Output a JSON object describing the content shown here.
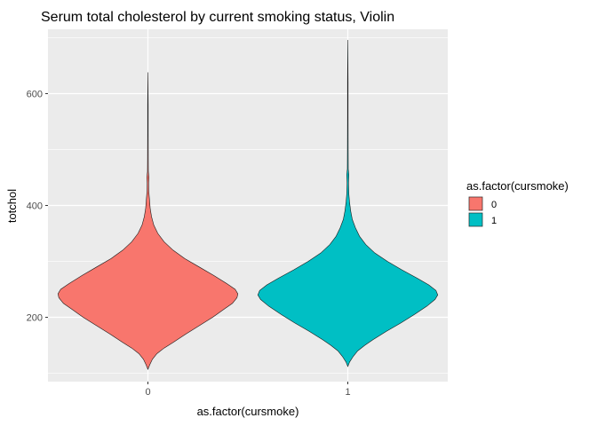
{
  "chart_data": {
    "type": "violin",
    "title": "Serum total cholesterol by current smoking status, Violin",
    "xlabel": "as.factor(cursmoke)",
    "ylabel": "totchol",
    "categories": [
      "0",
      "1"
    ],
    "ylim": [
      85,
      715
    ],
    "yticks": [
      200,
      400,
      600
    ],
    "grid": true,
    "legend": {
      "title": "as.factor(cursmoke)",
      "placement": "right",
      "entries": [
        {
          "label": "0",
          "color": "#F8766D"
        },
        {
          "label": "1",
          "color": "#00BFC4"
        }
      ]
    },
    "series": [
      {
        "category": "0",
        "color": "#F8766D",
        "min": 107,
        "max": 638,
        "density": [
          [
            107,
            0.0
          ],
          [
            115,
            0.02
          ],
          [
            125,
            0.05
          ],
          [
            135,
            0.1
          ],
          [
            145,
            0.18
          ],
          [
            155,
            0.28
          ],
          [
            170,
            0.42
          ],
          [
            185,
            0.57
          ],
          [
            200,
            0.72
          ],
          [
            215,
            0.85
          ],
          [
            225,
            0.94
          ],
          [
            235,
            0.99
          ],
          [
            242,
            1.0
          ],
          [
            250,
            0.97
          ],
          [
            260,
            0.88
          ],
          [
            275,
            0.73
          ],
          [
            290,
            0.57
          ],
          [
            305,
            0.41
          ],
          [
            320,
            0.28
          ],
          [
            335,
            0.18
          ],
          [
            350,
            0.11
          ],
          [
            365,
            0.065
          ],
          [
            380,
            0.04
          ],
          [
            395,
            0.025
          ],
          [
            410,
            0.018
          ],
          [
            425,
            0.01
          ],
          [
            440,
            0.008
          ],
          [
            450,
            0.012
          ],
          [
            460,
            0.005
          ],
          [
            480,
            0.004
          ],
          [
            530,
            0.003
          ],
          [
            580,
            0.003
          ],
          [
            638,
            0.0
          ]
        ]
      },
      {
        "category": "1",
        "color": "#00BFC4",
        "min": 112,
        "max": 696,
        "density": [
          [
            112,
            0.0
          ],
          [
            120,
            0.02
          ],
          [
            130,
            0.06
          ],
          [
            140,
            0.11
          ],
          [
            150,
            0.19
          ],
          [
            160,
            0.28
          ],
          [
            175,
            0.43
          ],
          [
            190,
            0.59
          ],
          [
            205,
            0.74
          ],
          [
            220,
            0.88
          ],
          [
            232,
            0.97
          ],
          [
            240,
            1.0
          ],
          [
            248,
            0.98
          ],
          [
            258,
            0.9
          ],
          [
            270,
            0.77
          ],
          [
            285,
            0.6
          ],
          [
            300,
            0.44
          ],
          [
            315,
            0.3
          ],
          [
            330,
            0.2
          ],
          [
            345,
            0.13
          ],
          [
            360,
            0.085
          ],
          [
            375,
            0.05
          ],
          [
            390,
            0.032
          ],
          [
            405,
            0.02
          ],
          [
            420,
            0.012
          ],
          [
            440,
            0.008
          ],
          [
            455,
            0.012
          ],
          [
            465,
            0.005
          ],
          [
            500,
            0.004
          ],
          [
            560,
            0.003
          ],
          [
            620,
            0.003
          ],
          [
            696,
            0.0
          ]
        ]
      }
    ]
  }
}
